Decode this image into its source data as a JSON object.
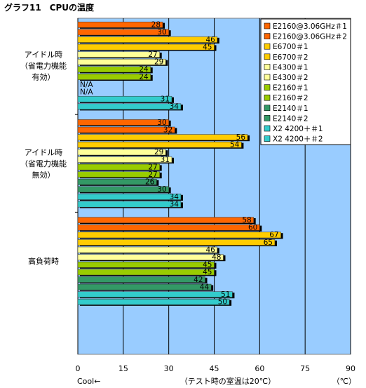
{
  "chart_data": {
    "type": "bar",
    "orientation": "horizontal",
    "title": "グラフ11　CPUの温度",
    "xlim": [
      0,
      90
    ],
    "xticks": [
      0,
      15,
      30,
      45,
      60,
      75,
      90
    ],
    "xlabel_left": "Cool←",
    "xlabel_center": "（テスト時の室温は20℃）",
    "xlabel_unit": "（℃）",
    "grid": true,
    "legend_position": "top-right",
    "series_names": [
      "E2160@3.06GHz＃1",
      "E2160@3.06GHz＃2",
      "E6700＃1",
      "E6700＃2",
      "E4300＃1",
      "E4300＃2",
      "E2160＃1",
      "E2160＃2",
      "E2140＃1",
      "E2140＃2",
      "X2 4200＋＃1",
      "X2 4200＋＃2"
    ],
    "series_colors": [
      "#ff6600",
      "#ff6600",
      "#ffcc00",
      "#ffcc00",
      "#ffff99",
      "#ffff99",
      "#99cc00",
      "#99cc00",
      "#339966",
      "#339966",
      "#33cccc",
      "#33cccc"
    ],
    "groups": [
      {
        "label_lines": [
          "アイドル時",
          "（省電力機能",
          "有効）"
        ],
        "values": [
          28,
          30,
          46,
          45,
          27,
          29,
          24,
          24,
          null,
          null,
          31,
          34
        ],
        "value_labels": [
          "28",
          "30",
          "46",
          "45",
          "27",
          "29",
          "24",
          "24",
          "N/A",
          "N/A",
          "31",
          "34"
        ]
      },
      {
        "label_lines": [
          "アイドル時",
          "（省電力機能",
          "無効）"
        ],
        "values": [
          30,
          32,
          56,
          54,
          29,
          31,
          27,
          27,
          26,
          30,
          34,
          34
        ],
        "value_labels": [
          "30",
          "32",
          "56",
          "54",
          "29",
          "31",
          "27",
          "27",
          "26",
          "30",
          "34",
          "34"
        ]
      },
      {
        "label_lines": [
          "高負荷時"
        ],
        "values": [
          58,
          60,
          67,
          65,
          46,
          48,
          45,
          45,
          42,
          44,
          51,
          50
        ],
        "value_labels": [
          "58",
          "60",
          "67",
          "65",
          "46",
          "48",
          "45",
          "45",
          "42",
          "44",
          "51",
          "50"
        ]
      }
    ]
  }
}
